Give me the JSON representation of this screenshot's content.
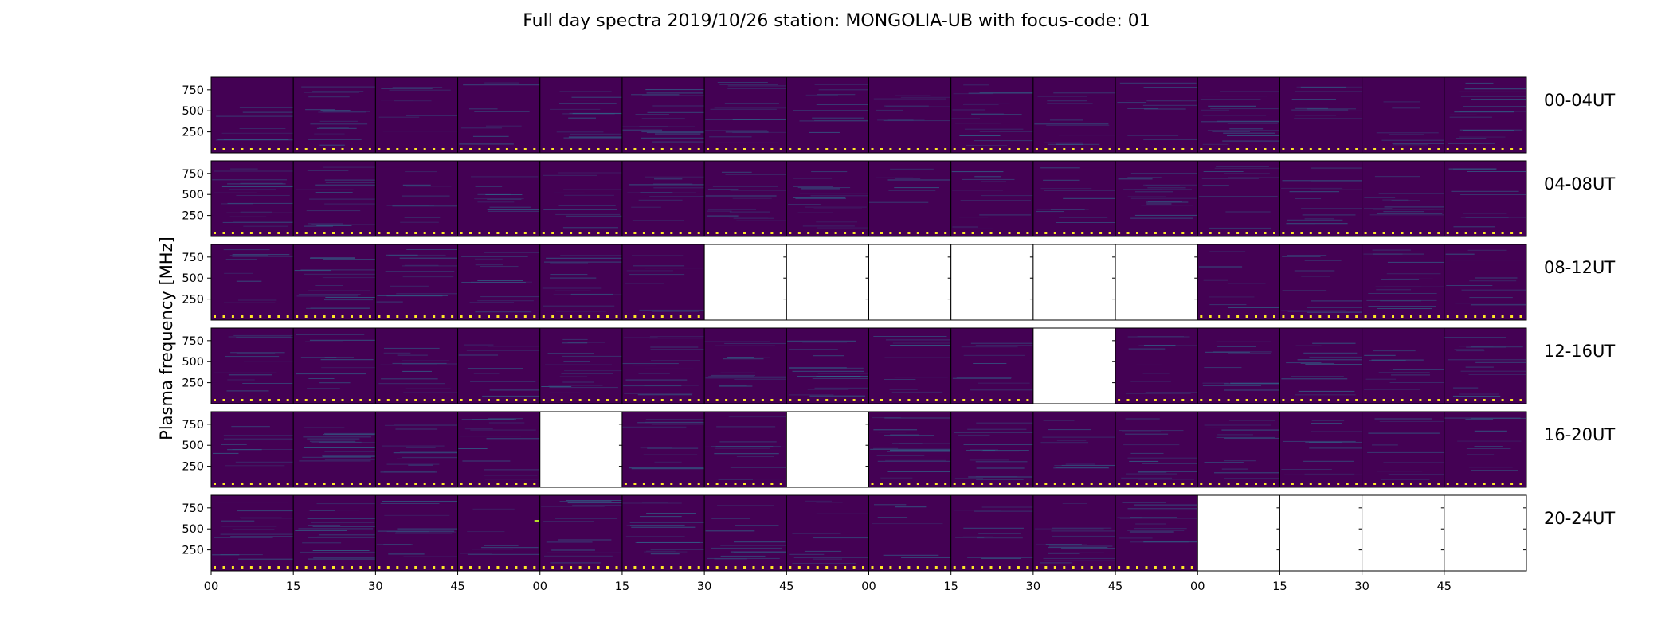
{
  "chart_data": {
    "type": "heatmap",
    "title": "Full day spectra 2019/10/26 station: MONGOLIA-UB with focus-code: 01",
    "ylabel": "Plasma frequency [MHz]",
    "xlabel": "",
    "y_ticks": [
      250,
      500,
      750
    ],
    "ylim": [
      0,
      900
    ],
    "x_tick_labels": [
      "00",
      "15",
      "30",
      "45",
      "00",
      "15",
      "30",
      "45",
      "00",
      "15",
      "30",
      "45",
      "00",
      "15",
      "30",
      "45"
    ],
    "colormap": "viridis",
    "colors": {
      "background": "#440154",
      "stripe": "#2f6c8e",
      "marker": "#fde725",
      "missing": "#ffffff",
      "spike": "#b5de2b"
    },
    "rows": [
      {
        "label": "00-04UT",
        "available": [
          1,
          1,
          1,
          1,
          1,
          1,
          1,
          1,
          1,
          1,
          1,
          1,
          1,
          1,
          1,
          1
        ]
      },
      {
        "label": "04-08UT",
        "available": [
          1,
          1,
          1,
          1,
          1,
          1,
          1,
          1,
          1,
          1,
          1,
          1,
          1,
          1,
          1,
          1
        ]
      },
      {
        "label": "08-12UT",
        "available": [
          1,
          1,
          1,
          1,
          1,
          1,
          0,
          0,
          0,
          0,
          0,
          0,
          1,
          1,
          1,
          1
        ]
      },
      {
        "label": "12-16UT",
        "available": [
          1,
          1,
          1,
          1,
          1,
          1,
          1,
          1,
          1,
          1,
          0,
          1,
          1,
          1,
          1,
          1
        ]
      },
      {
        "label": "16-20UT",
        "available": [
          1,
          1,
          1,
          1,
          0,
          1,
          1,
          0,
          1,
          1,
          1,
          1,
          1,
          1,
          1,
          1
        ]
      },
      {
        "label": "20-24UT",
        "available": [
          1,
          1,
          1,
          1,
          1,
          1,
          1,
          1,
          1,
          1,
          1,
          1,
          0,
          0,
          0,
          0
        ]
      }
    ]
  }
}
